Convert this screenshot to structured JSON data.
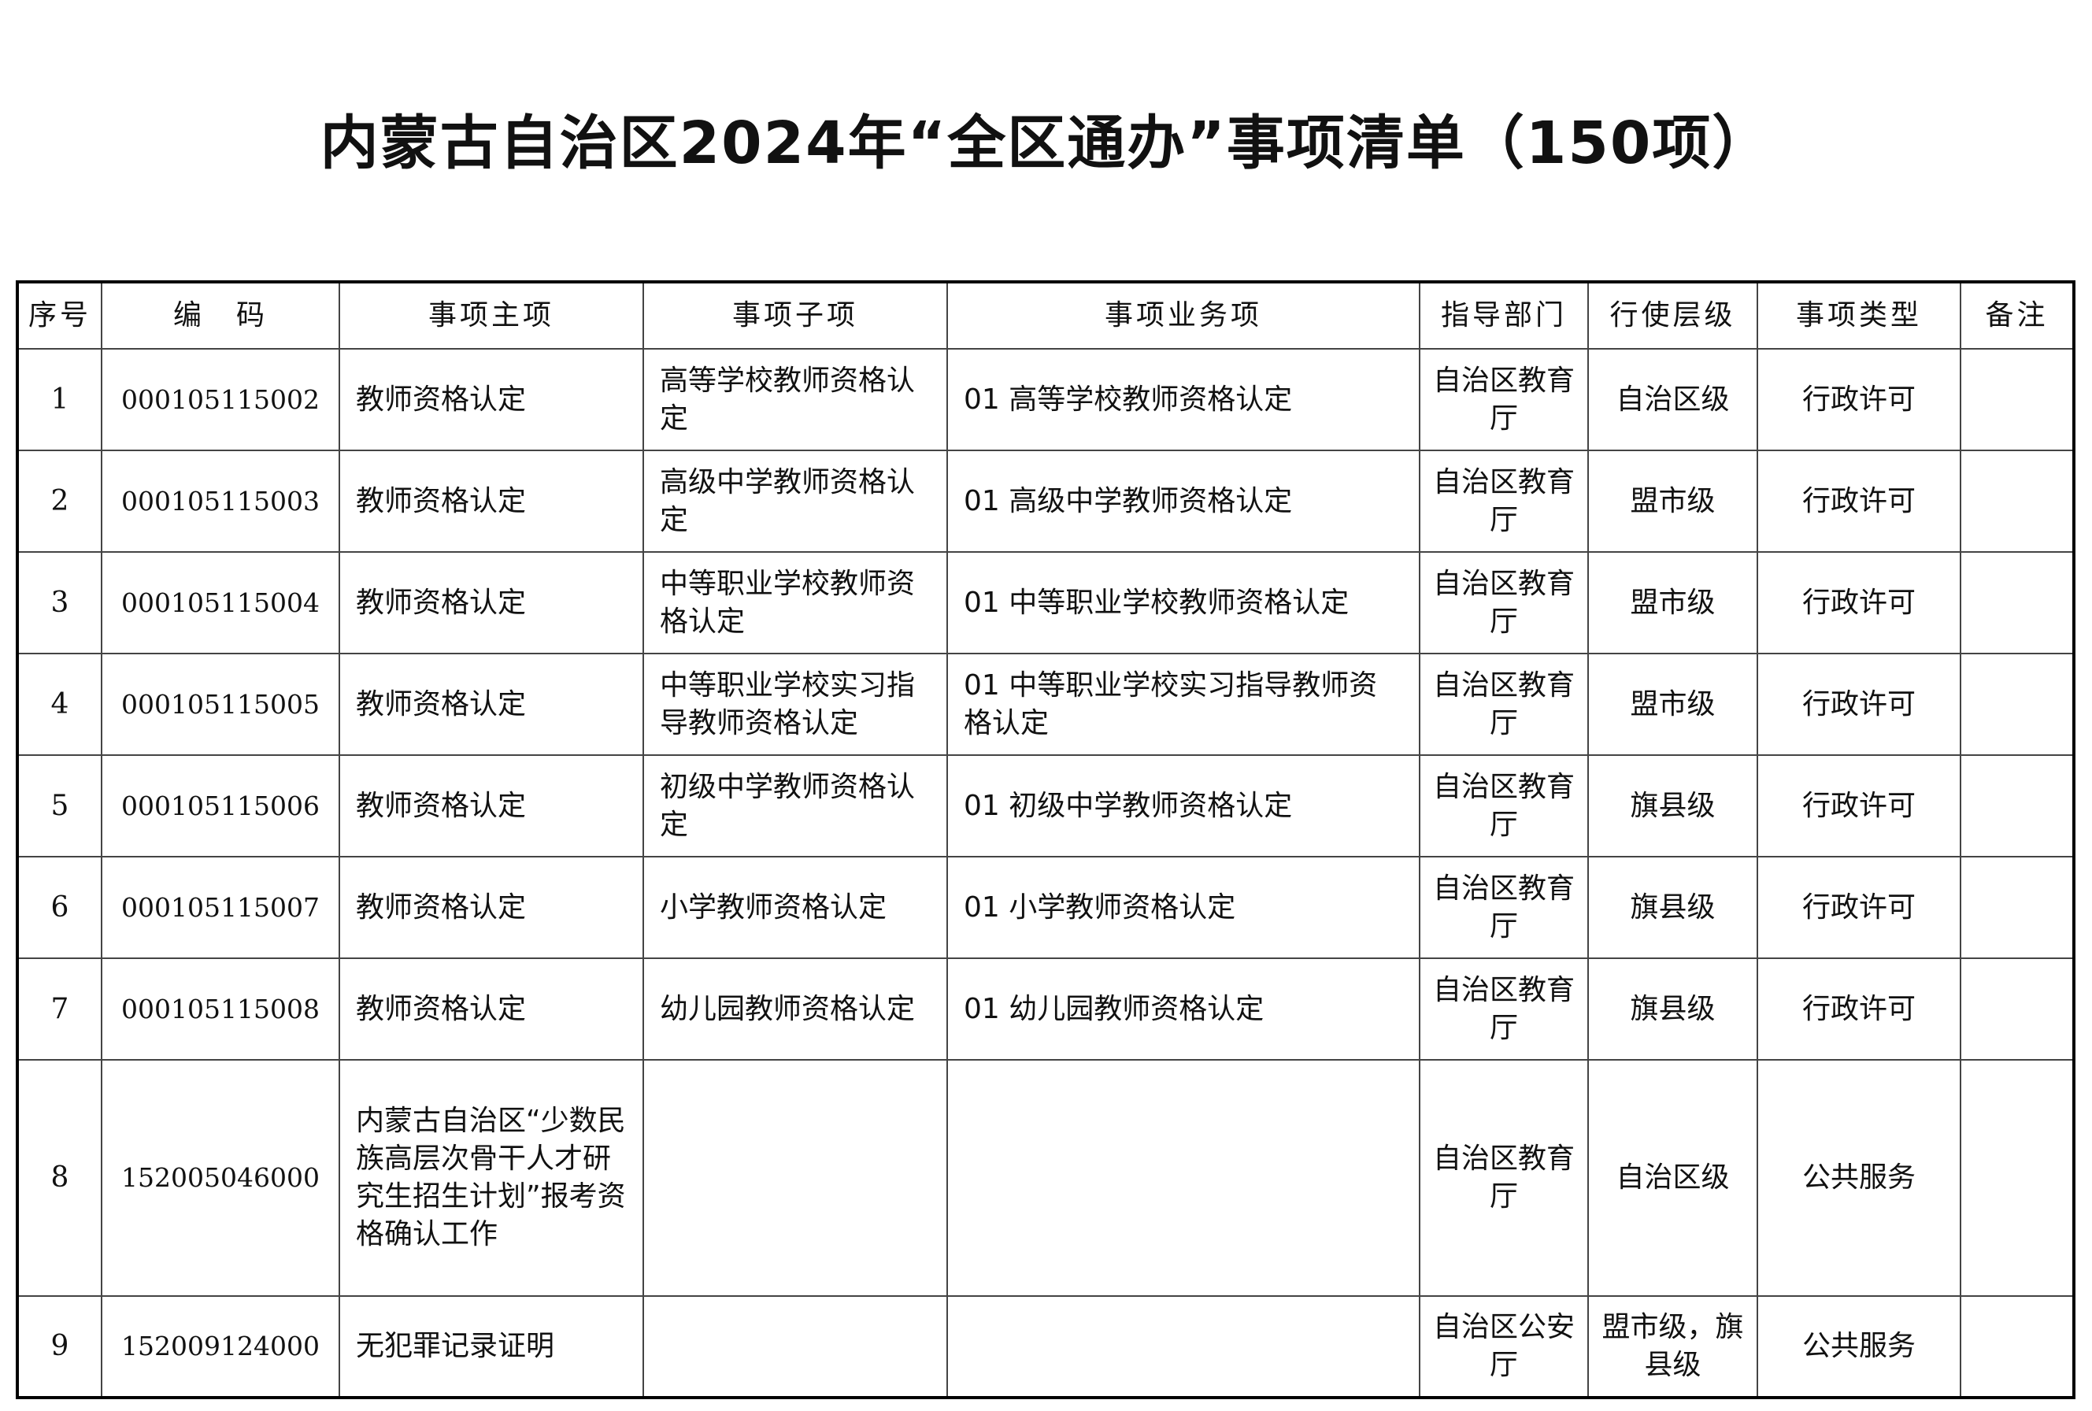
{
  "title": "内蒙古自治区2024年“全区通办”事项清单（150项）",
  "headers": [
    "序号",
    "编　码",
    "事项主项",
    "事项子项",
    "事项业务项",
    "指导部门",
    "行使层级",
    "事项类型",
    "备注"
  ],
  "rows": [
    {
      "no": "1",
      "code": "000105115002",
      "main": "教师资格认定",
      "sub": "高等学校教师资格认定",
      "business": "01 高等学校教师资格认定",
      "dept": "自治区教育厅",
      "level": "自治区级",
      "type": "行政许可",
      "note": ""
    },
    {
      "no": "2",
      "code": "000105115003",
      "main": "教师资格认定",
      "sub": "高级中学教师资格认定",
      "business": "01 高级中学教师资格认定",
      "dept": "自治区教育厅",
      "level": "盟市级",
      "type": "行政许可",
      "note": ""
    },
    {
      "no": "3",
      "code": "000105115004",
      "main": "教师资格认定",
      "sub": "中等职业学校教师资格认定",
      "business": "01 中等职业学校教师资格认定",
      "dept": "自治区教育厅",
      "level": "盟市级",
      "type": "行政许可",
      "note": ""
    },
    {
      "no": "4",
      "code": "000105115005",
      "main": "教师资格认定",
      "sub": "中等职业学校实习指导教师资格认定",
      "business": "01 中等职业学校实习指导教师资格认定",
      "dept": "自治区教育厅",
      "level": "盟市级",
      "type": "行政许可",
      "note": ""
    },
    {
      "no": "5",
      "code": "000105115006",
      "main": "教师资格认定",
      "sub": "初级中学教师资格认定",
      "business": "01 初级中学教师资格认定",
      "dept": "自治区教育厅",
      "level": "旗县级",
      "type": "行政许可",
      "note": ""
    },
    {
      "no": "6",
      "code": "000105115007",
      "main": "教师资格认定",
      "sub": "小学教师资格认定",
      "business": "01 小学教师资格认定",
      "dept": "自治区教育厅",
      "level": "旗县级",
      "type": "行政许可",
      "note": ""
    },
    {
      "no": "7",
      "code": "000105115008",
      "main": "教师资格认定",
      "sub": "幼儿园教师资格认定",
      "business": "01 幼儿园教师资格认定",
      "dept": "自治区教育厅",
      "level": "旗县级",
      "type": "行政许可",
      "note": ""
    },
    {
      "no": "8",
      "code": "152005046000",
      "main": "内蒙古自治区“少数民族高层次骨干人才研究生招生计划”报考资格确认工作",
      "sub": "",
      "business": "",
      "dept": "自治区教育厅",
      "level": "自治区级",
      "type": "公共服务",
      "note": ""
    },
    {
      "no": "9",
      "code": "152009124000",
      "main": "无犯罪记录证明",
      "sub": "",
      "business": "",
      "dept": "自治区公安厅",
      "level": "盟市级，旗县级",
      "type": "公共服务",
      "note": ""
    }
  ]
}
